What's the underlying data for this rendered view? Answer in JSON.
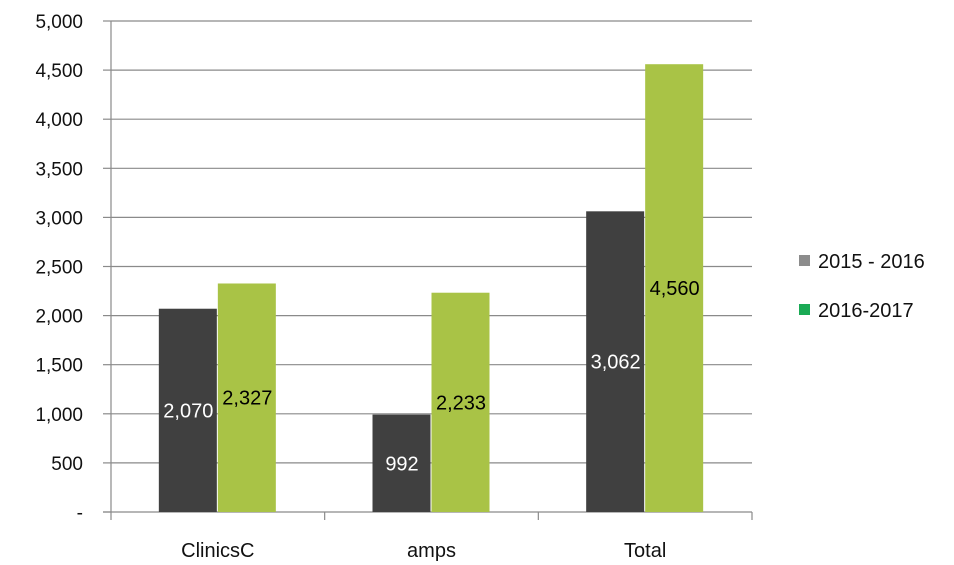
{
  "chart_data": {
    "type": "bar",
    "categories": [
      "ClinicsC",
      "amps",
      "Total"
    ],
    "series": [
      {
        "name": "2015 - 2016",
        "values": [
          2070,
          992,
          3062
        ],
        "labels": [
          "2,070",
          "992",
          "3,062"
        ],
        "color": "#404040",
        "label_color": "#ffffff",
        "legend_color": "#8c8c8c"
      },
      {
        "name": "2016-2017",
        "values": [
          2327,
          2233,
          4560
        ],
        "labels": [
          "2,327",
          "2,233",
          "4,560"
        ],
        "color": "#a9c346",
        "label_color": "#000000",
        "legend_color": "#1aaa55"
      }
    ],
    "y_ticks": [
      0,
      500,
      1000,
      1500,
      2000,
      2500,
      3000,
      3500,
      4000,
      4500,
      5000
    ],
    "y_tick_labels": [
      "-",
      "500",
      "1,000",
      "1,500",
      "2,000",
      "2,500",
      "3,000",
      "3,500",
      "4,000",
      "4,500",
      "5,000"
    ],
    "ylim": [
      0,
      5000
    ],
    "grid": true,
    "legend_position": "right"
  }
}
